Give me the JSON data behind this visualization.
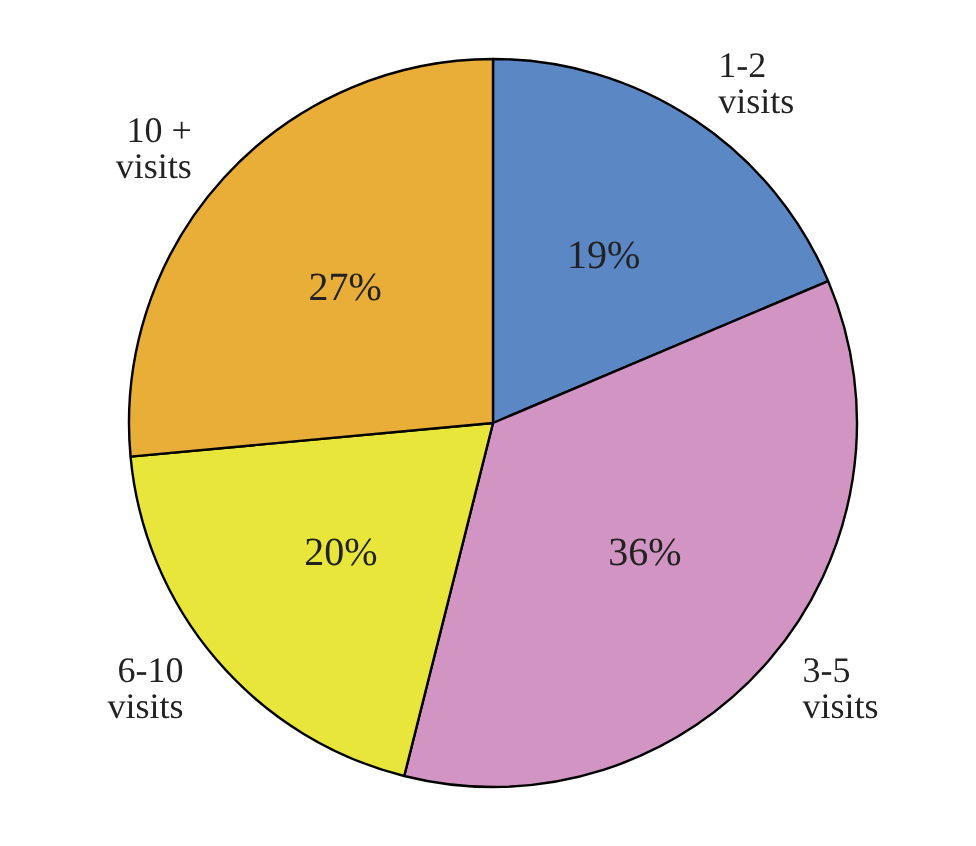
{
  "chart_data": {
    "type": "pie",
    "categories": [
      "1-2\nvisits",
      "3-5\nvisits",
      "6-10\nvisits",
      "10 +\nvisits"
    ],
    "values": [
      19,
      36,
      20,
      27
    ],
    "value_labels": [
      "19%",
      "36%",
      "20%",
      "27%"
    ],
    "colors": [
      "#5b87c5",
      "#d295c3",
      "#e8e63a",
      "#e8ae38"
    ]
  }
}
